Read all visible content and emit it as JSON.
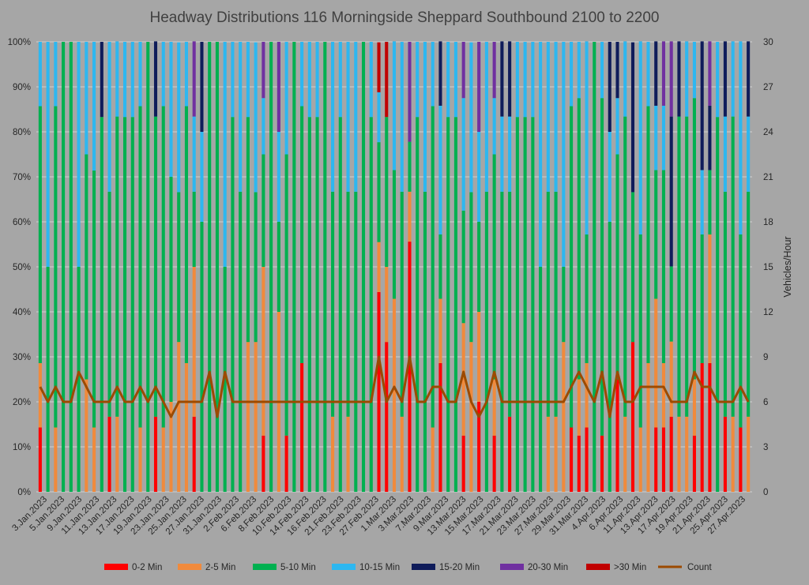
{
  "chart_data": {
    "type": "bar",
    "stacked": true,
    "title": "Headway Distributions 116 Morningside  Sheppard Southbound 2100 to 2200",
    "ylabel": "",
    "y2label": "Vehicles/Hour",
    "ylim": [
      0,
      100
    ],
    "y2lim": [
      0,
      30
    ],
    "yticks": [
      "0%",
      "10%",
      "20%",
      "30%",
      "40%",
      "50%",
      "60%",
      "70%",
      "80%",
      "90%",
      "100%"
    ],
    "y2ticks": [
      "0",
      "3",
      "6",
      "9",
      "12",
      "15",
      "18",
      "21",
      "24",
      "27",
      "30"
    ],
    "grid": true,
    "legend_position": "bottom",
    "xtick_labels": [
      "3.Jan.2023",
      "5.Jan.2023",
      "9.Jan.2023",
      "11.Jan.2023",
      "13.Jan.2023",
      "17.Jan.2023",
      "19.Jan.2023",
      "23.Jan.2023",
      "25.Jan.2023",
      "27.Jan.2023",
      "31.Jan.2023",
      "2.Feb.2023",
      "6.Feb.2023",
      "8.Feb.2023",
      "10.Feb.2023",
      "14.Feb.2023",
      "16.Feb.2023",
      "21.Feb.2023",
      "23.Feb.2023",
      "27.Feb.2023",
      "1.Mar.2023",
      "3.Mar.2023",
      "7.Mar.2023",
      "9.Mar.2023",
      "13.Mar.2023",
      "15.Mar.2023",
      "17.Mar.2023",
      "21.Mar.2023",
      "23.Mar.2023",
      "27.Mar.2023",
      "29.Mar.2023",
      "31.Mar.2023",
      "4.Apr.2023",
      "6.Apr.2023",
      "11.Apr.2023",
      "13.Apr.2023",
      "17.Apr.2023",
      "19.Apr.2023",
      "21.Apr.2023",
      "25.Apr.2023",
      "27.Apr.2023"
    ],
    "series": [
      {
        "name": "0-2 Min",
        "color": "#ff0000"
      },
      {
        "name": "2-5 Min",
        "color": "#f08a3c"
      },
      {
        "name": "5-10 Min",
        "color": "#00b050"
      },
      {
        "name": "10-15 Min",
        "color": "#2db7f0"
      },
      {
        "name": "15-20 Min",
        "color": "#0f1c5a"
      },
      {
        "name": "20-30 Min",
        "color": "#7030a0"
      },
      {
        "name": ">30 Min",
        "color": "#c00000"
      },
      {
        "name": "Count",
        "color": "#9c4a00",
        "axis": "secondary",
        "line": true
      }
    ],
    "bars": [
      [
        14.3,
        14.3,
        57.1,
        14.3,
        0,
        0,
        0
      ],
      [
        0,
        0,
        50,
        50,
        0,
        0,
        0
      ],
      [
        0,
        14.3,
        71.4,
        14.3,
        0,
        0,
        0
      ],
      [
        0,
        0,
        100,
        0,
        0,
        0,
        0
      ],
      [
        0,
        0,
        100,
        0,
        0,
        0,
        0
      ],
      [
        0,
        0,
        50,
        50,
        0,
        0,
        0
      ],
      [
        0,
        25,
        50,
        25,
        0,
        0,
        0
      ],
      [
        0,
        14.3,
        57.1,
        28.6,
        0,
        0,
        0
      ],
      [
        0,
        0,
        83.3,
        0,
        16.7,
        0,
        0
      ],
      [
        16.7,
        0,
        50,
        33.3,
        0,
        0,
        0
      ],
      [
        0,
        16.7,
        66.7,
        16.7,
        0,
        0,
        0
      ],
      [
        0,
        0,
        83.3,
        16.7,
        0,
        0,
        0
      ],
      [
        0,
        0,
        83.3,
        16.7,
        0,
        0,
        0
      ],
      [
        0,
        14.3,
        71.4,
        14.3,
        0,
        0,
        0
      ],
      [
        0,
        0,
        100,
        0,
        0,
        0,
        0
      ],
      [
        16.7,
        0,
        66.7,
        0,
        16.7,
        0,
        0
      ],
      [
        0,
        14.3,
        71.4,
        14.3,
        0,
        0,
        0
      ],
      [
        0,
        20,
        50,
        30,
        0,
        0,
        0
      ],
      [
        0,
        33.3,
        33.3,
        33.3,
        0,
        0,
        0
      ],
      [
        0,
        28.6,
        57.1,
        14.3,
        0,
        0,
        0
      ],
      [
        16.7,
        33.3,
        16.7,
        16.7,
        0,
        16.7,
        0
      ],
      [
        0,
        0,
        60,
        20,
        20,
        0,
        0
      ],
      [
        0,
        0,
        100,
        0,
        0,
        0,
        0
      ],
      [
        0,
        0,
        100,
        0,
        0,
        0,
        0
      ],
      [
        0,
        0,
        50,
        50,
        0,
        0,
        0
      ],
      [
        0,
        0,
        83.3,
        16.7,
        0,
        0,
        0
      ],
      [
        0,
        0,
        66.7,
        33.3,
        0,
        0,
        0
      ],
      [
        0,
        33.3,
        50,
        16.7,
        0,
        0,
        0
      ],
      [
        0,
        33.3,
        33.3,
        33.3,
        0,
        0,
        0
      ],
      [
        12.5,
        37.5,
        25,
        12.5,
        0,
        12.5,
        0
      ],
      [
        0,
        0,
        100,
        0,
        0,
        0,
        0
      ],
      [
        0,
        40,
        20,
        20,
        0,
        20,
        0
      ],
      [
        12.5,
        0,
        62.5,
        25,
        0,
        0,
        0
      ],
      [
        0,
        0,
        100,
        0,
        0,
        0,
        0
      ],
      [
        28.6,
        0,
        57.1,
        14.3,
        0,
        0,
        0
      ],
      [
        0,
        0,
        83.3,
        16.7,
        0,
        0,
        0
      ],
      [
        0,
        0,
        83.3,
        16.7,
        0,
        0,
        0
      ],
      [
        0,
        0,
        100,
        0,
        0,
        0,
        0
      ],
      [
        0,
        16.7,
        50,
        33.3,
        0,
        0,
        0
      ],
      [
        0,
        0,
        83.3,
        16.7,
        0,
        0,
        0
      ],
      [
        0,
        16.7,
        50,
        33.3,
        0,
        0,
        0
      ],
      [
        0,
        0,
        66.7,
        33.3,
        0,
        0,
        0
      ],
      [
        0,
        0,
        100,
        0,
        0,
        0,
        0
      ],
      [
        0,
        0,
        83.3,
        16.7,
        0,
        0,
        0
      ],
      [
        44.4,
        11.1,
        22.2,
        11.1,
        0,
        0,
        11.1
      ],
      [
        33.3,
        16.7,
        33.3,
        0,
        0,
        0,
        16.7
      ],
      [
        0,
        42.9,
        28.6,
        28.6,
        0,
        0,
        0
      ],
      [
        0,
        16.7,
        50,
        33.3,
        0,
        0,
        0
      ],
      [
        55.6,
        11.1,
        11.1,
        0,
        0,
        22.2,
        0
      ],
      [
        0,
        0,
        83.3,
        16.7,
        0,
        0,
        0
      ],
      [
        0,
        0,
        66.7,
        33.3,
        0,
        0,
        0
      ],
      [
        0,
        14.3,
        71.4,
        14.3,
        0,
        0,
        0
      ],
      [
        28.6,
        14.3,
        14.3,
        28.6,
        14.3,
        0,
        0
      ],
      [
        0,
        0,
        83.3,
        16.7,
        0,
        0,
        0
      ],
      [
        0,
        0,
        83.3,
        16.7,
        0,
        0,
        0
      ],
      [
        12.5,
        25,
        25,
        25,
        0,
        12.5,
        0
      ],
      [
        0,
        33.3,
        33.3,
        33.3,
        0,
        0,
        0
      ],
      [
        20,
        20,
        20,
        20,
        0,
        20,
        0
      ],
      [
        0,
        0,
        66.7,
        33.3,
        0,
        0,
        0
      ],
      [
        12.5,
        12.5,
        50,
        12.5,
        0,
        12.5,
        0
      ],
      [
        0,
        0,
        66.7,
        16.7,
        16.7,
        0,
        0
      ],
      [
        16.7,
        0,
        50,
        16.7,
        16.7,
        0,
        0
      ],
      [
        0,
        0,
        83.3,
        16.7,
        0,
        0,
        0
      ],
      [
        0,
        0,
        83.3,
        16.7,
        0,
        0,
        0
      ],
      [
        0,
        0,
        83.3,
        16.7,
        0,
        0,
        0
      ],
      [
        0,
        0,
        50,
        50,
        0,
        0,
        0
      ],
      [
        0,
        16.7,
        50,
        33.3,
        0,
        0,
        0
      ],
      [
        0,
        16.7,
        50,
        33.3,
        0,
        0,
        0
      ],
      [
        0,
        33.3,
        16.7,
        50,
        0,
        0,
        0
      ],
      [
        14.3,
        0,
        71.4,
        14.3,
        0,
        0,
        0
      ],
      [
        12.5,
        12.5,
        62.5,
        12.5,
        0,
        0,
        0
      ],
      [
        14.3,
        14.3,
        28.6,
        42.9,
        0,
        0,
        0
      ],
      [
        0,
        0,
        100,
        0,
        0,
        0,
        0
      ],
      [
        12.5,
        0,
        75,
        12.5,
        0,
        0,
        0
      ],
      [
        0,
        0,
        60,
        20,
        20,
        0,
        0
      ],
      [
        25,
        0,
        50,
        12.5,
        12.5,
        0,
        0
      ],
      [
        0,
        16.7,
        66.7,
        16.7,
        0,
        0,
        0
      ],
      [
        33.3,
        0,
        33.3,
        0,
        33.3,
        0,
        0
      ],
      [
        0,
        14.3,
        42.9,
        42.9,
        0,
        0,
        0
      ],
      [
        0,
        28.6,
        57.1,
        14.3,
        0,
        0,
        0
      ],
      [
        14.3,
        28.6,
        28.6,
        14.3,
        14.3,
        0,
        0
      ],
      [
        14.3,
        14.3,
        42.9,
        14.3,
        0,
        14.3,
        0
      ],
      [
        16.7,
        16.7,
        16.7,
        0,
        33.3,
        16.7,
        0
      ],
      [
        0,
        16.7,
        66.7,
        0,
        16.7,
        0,
        0
      ],
      [
        0,
        16.7,
        66.7,
        16.7,
        0,
        0,
        0
      ],
      [
        12.5,
        12.5,
        62.5,
        12.5,
        0,
        0,
        0
      ],
      [
        28.6,
        0,
        28.6,
        14.3,
        28.6,
        0,
        0
      ],
      [
        28.6,
        28.6,
        14.3,
        0,
        14.3,
        14.3,
        0
      ],
      [
        0,
        0,
        83.3,
        16.7,
        0,
        0,
        0
      ],
      [
        16.7,
        0,
        50,
        16.7,
        16.7,
        0,
        0
      ],
      [
        0,
        16.7,
        66.7,
        16.7,
        0,
        0,
        0
      ],
      [
        14.3,
        0,
        42.9,
        42.9,
        0,
        0,
        0
      ],
      [
        0,
        16.7,
        50,
        16.7,
        16.7,
        0,
        0
      ]
    ],
    "count": [
      7,
      6,
      7,
      6,
      6,
      8,
      7,
      6,
      6,
      6,
      7,
      6,
      6,
      7,
      6,
      7,
      6,
      5,
      6,
      6,
      6,
      6,
      8,
      5,
      8,
      6,
      6,
      6,
      6,
      6,
      6,
      6,
      6,
      6,
      6,
      6,
      6,
      6,
      6,
      6,
      6,
      6,
      6,
      6,
      9,
      6,
      7,
      6,
      9,
      6,
      6,
      7,
      7,
      6,
      6,
      8,
      6,
      5,
      6,
      8,
      6,
      6,
      6,
      6,
      6,
      6,
      6,
      6,
      6,
      7,
      8,
      7,
      6,
      8,
      5,
      8,
      6,
      6,
      7,
      7,
      7,
      7,
      6,
      6,
      6,
      8,
      7,
      7,
      6,
      6,
      6,
      7,
      6
    ]
  }
}
